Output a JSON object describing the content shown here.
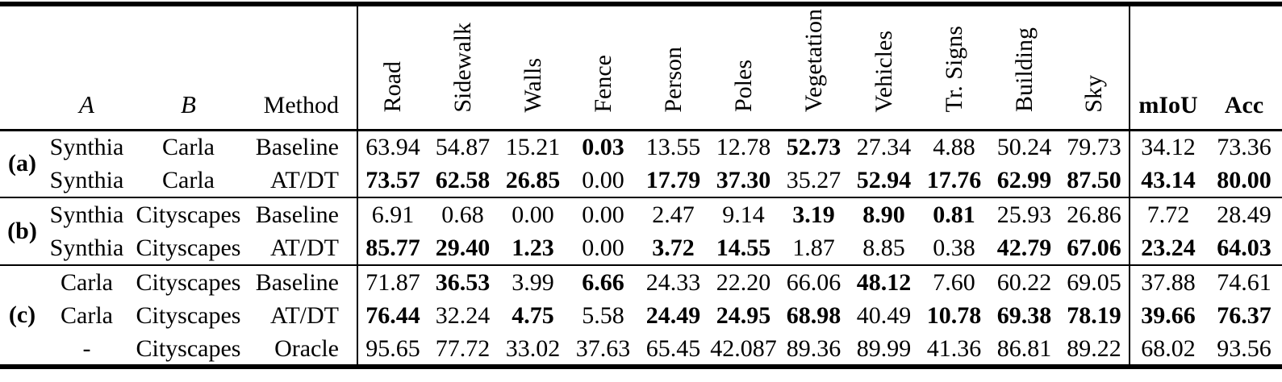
{
  "colors": {
    "text": "#000000",
    "background": "#ffffff"
  },
  "table": {
    "columns": {
      "meta": [
        "A",
        "B",
        "Method"
      ],
      "classes": [
        "Road",
        "Sidewalk",
        "Walls",
        "Fence",
        "Person",
        "Poles",
        "Vegetation",
        "Vehicles",
        "Tr. Signs",
        "Building",
        "Sky"
      ],
      "summary": [
        "mIoU",
        "Acc"
      ]
    },
    "groups": [
      {
        "label": "(a)",
        "rows": [
          {
            "a": "Synthia",
            "b": "Carla",
            "method": "Baseline",
            "values": [
              "63.94",
              "54.87",
              "15.21",
              "0.03",
              "13.55",
              "12.78",
              "52.73",
              "27.34",
              "4.88",
              "50.24",
              "79.73",
              "34.12",
              "73.36"
            ],
            "bold": [
              false,
              false,
              false,
              true,
              false,
              false,
              true,
              false,
              false,
              false,
              false,
              false,
              false
            ]
          },
          {
            "a": "Synthia",
            "b": "Carla",
            "method": "AT/DT",
            "values": [
              "73.57",
              "62.58",
              "26.85",
              "0.00",
              "17.79",
              "37.30",
              "35.27",
              "52.94",
              "17.76",
              "62.99",
              "87.50",
              "43.14",
              "80.00"
            ],
            "bold": [
              true,
              true,
              true,
              false,
              true,
              true,
              false,
              true,
              true,
              true,
              true,
              true,
              true
            ]
          }
        ]
      },
      {
        "label": "(b)",
        "rows": [
          {
            "a": "Synthia",
            "b": "Cityscapes",
            "method": "Baseline",
            "values": [
              "6.91",
              "0.68",
              "0.00",
              "0.00",
              "2.47",
              "9.14",
              "3.19",
              "8.90",
              "0.81",
              "25.93",
              "26.86",
              "7.72",
              "28.49"
            ],
            "bold": [
              false,
              false,
              false,
              false,
              false,
              false,
              true,
              true,
              true,
              false,
              false,
              false,
              false
            ]
          },
          {
            "a": "Synthia",
            "b": "Cityscapes",
            "method": "AT/DT",
            "values": [
              "85.77",
              "29.40",
              "1.23",
              "0.00",
              "3.72",
              "14.55",
              "1.87",
              "8.85",
              "0.38",
              "42.79",
              "67.06",
              "23.24",
              "64.03"
            ],
            "bold": [
              true,
              true,
              true,
              false,
              true,
              true,
              false,
              false,
              false,
              true,
              true,
              true,
              true
            ]
          }
        ]
      },
      {
        "label": "(c)",
        "rows": [
          {
            "a": "Carla",
            "b": "Cityscapes",
            "method": "Baseline",
            "values": [
              "71.87",
              "36.53",
              "3.99",
              "6.66",
              "24.33",
              "22.20",
              "66.06",
              "48.12",
              "7.60",
              "60.22",
              "69.05",
              "37.88",
              "74.61"
            ],
            "bold": [
              false,
              true,
              false,
              true,
              false,
              false,
              false,
              true,
              false,
              false,
              false,
              false,
              false
            ]
          },
          {
            "a": "Carla",
            "b": "Cityscapes",
            "method": "AT/DT",
            "values": [
              "76.44",
              "32.24",
              "4.75",
              "5.58",
              "24.49",
              "24.95",
              "68.98",
              "40.49",
              "10.78",
              "69.38",
              "78.19",
              "39.66",
              "76.37"
            ],
            "bold": [
              true,
              false,
              true,
              false,
              true,
              true,
              true,
              false,
              true,
              true,
              true,
              true,
              true
            ]
          },
          {
            "a": "-",
            "b": "Cityscapes",
            "method": "Oracle",
            "values": [
              "95.65",
              "77.72",
              "33.02",
              "37.63",
              "65.45",
              "42.087",
              "89.36",
              "89.99",
              "41.36",
              "86.81",
              "89.22",
              "68.02",
              "93.56"
            ],
            "bold": [
              false,
              false,
              false,
              false,
              false,
              false,
              false,
              false,
              false,
              false,
              false,
              false,
              false
            ]
          }
        ]
      }
    ]
  }
}
